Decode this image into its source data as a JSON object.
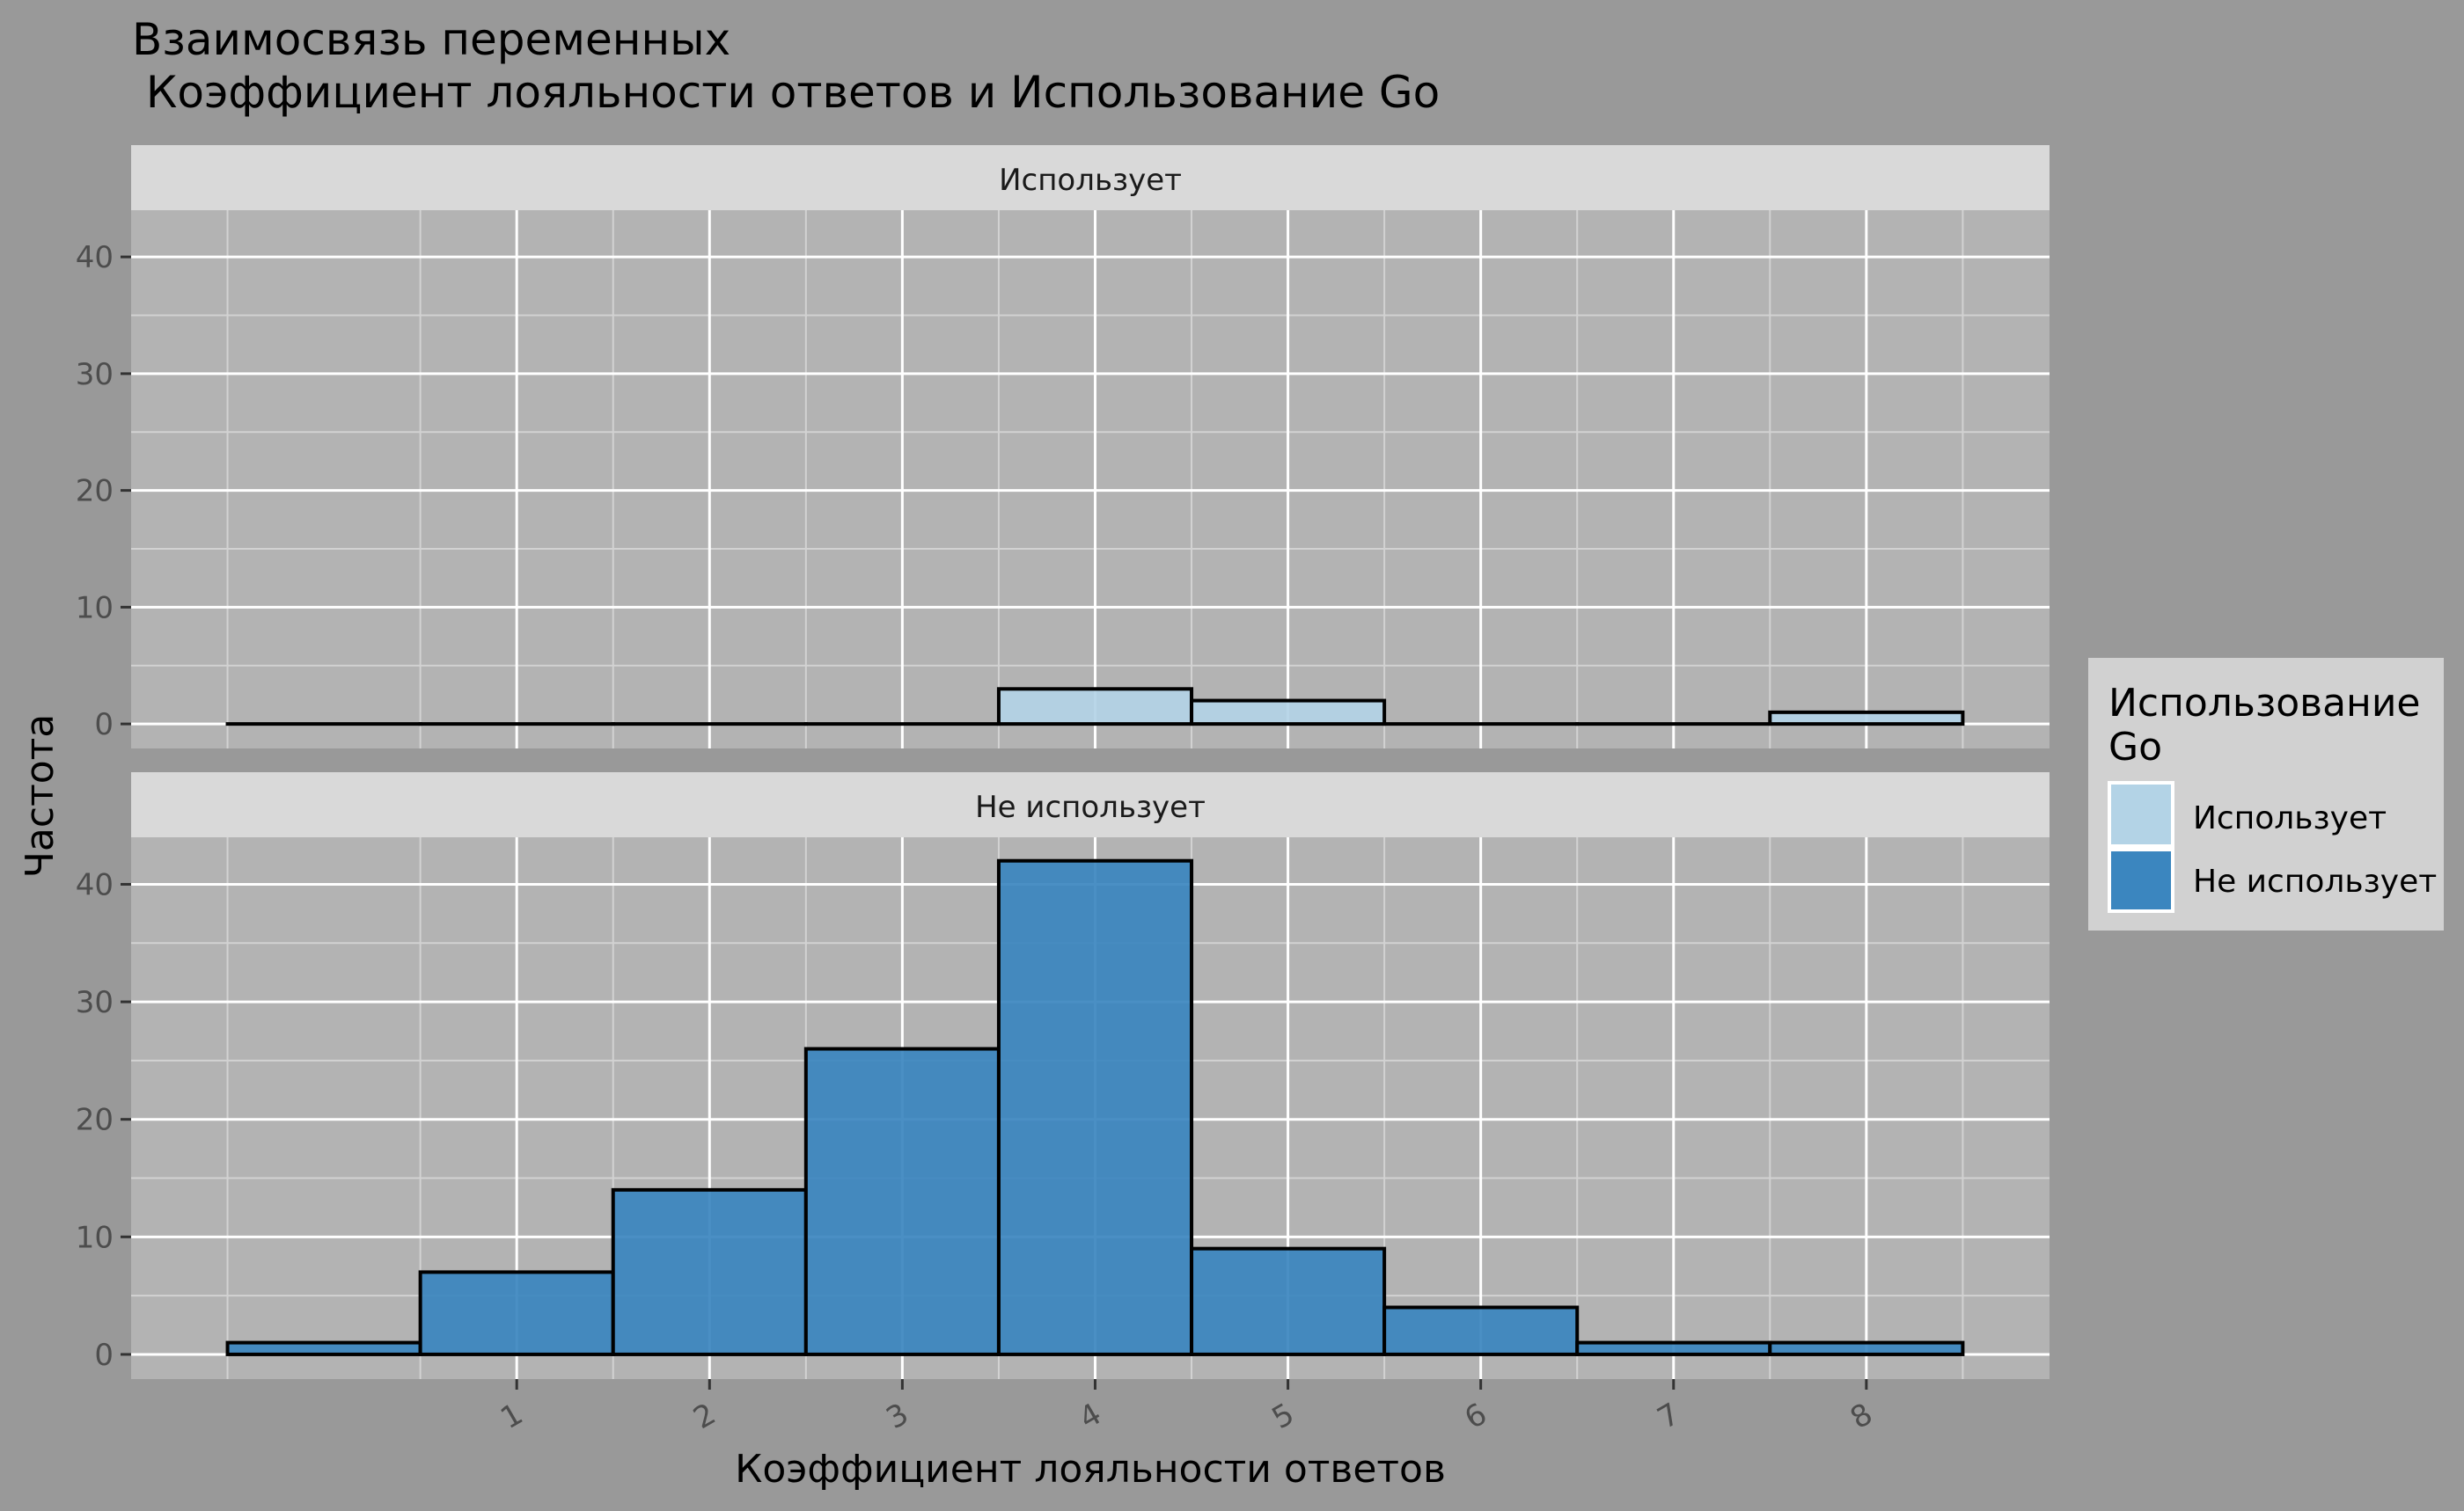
{
  "chart_data": {
    "type": "bar",
    "title_line1": "Взаимосвязь переменных",
    "title_line2": " Коэффициент лояльности ответов и Использование Go",
    "xlabel": "Коэффициент лояльности ответов",
    "ylabel": "Частота",
    "x_ticks": [
      1,
      2,
      3,
      4,
      5,
      6,
      7,
      8
    ],
    "y_ticks": [
      0,
      10,
      20,
      30,
      40
    ],
    "xlim": [
      -1,
      8.95
    ],
    "ylim": [
      -2.1,
      44
    ],
    "bin_width": 1,
    "bins": [
      0,
      1,
      2,
      3,
      4,
      5,
      6,
      7,
      8
    ],
    "legend": {
      "title_line1": "Использование",
      "title_line2": "Go",
      "position": "right"
    },
    "series": [
      {
        "name": "Использует",
        "color": "#b3d3e6",
        "values": [
          0,
          0,
          0,
          0,
          3,
          2,
          0,
          0,
          1
        ]
      },
      {
        "name": "Не использует",
        "color": "#3b86bf",
        "values": [
          1,
          7,
          14,
          26,
          42,
          9,
          4,
          1,
          1
        ]
      }
    ]
  }
}
